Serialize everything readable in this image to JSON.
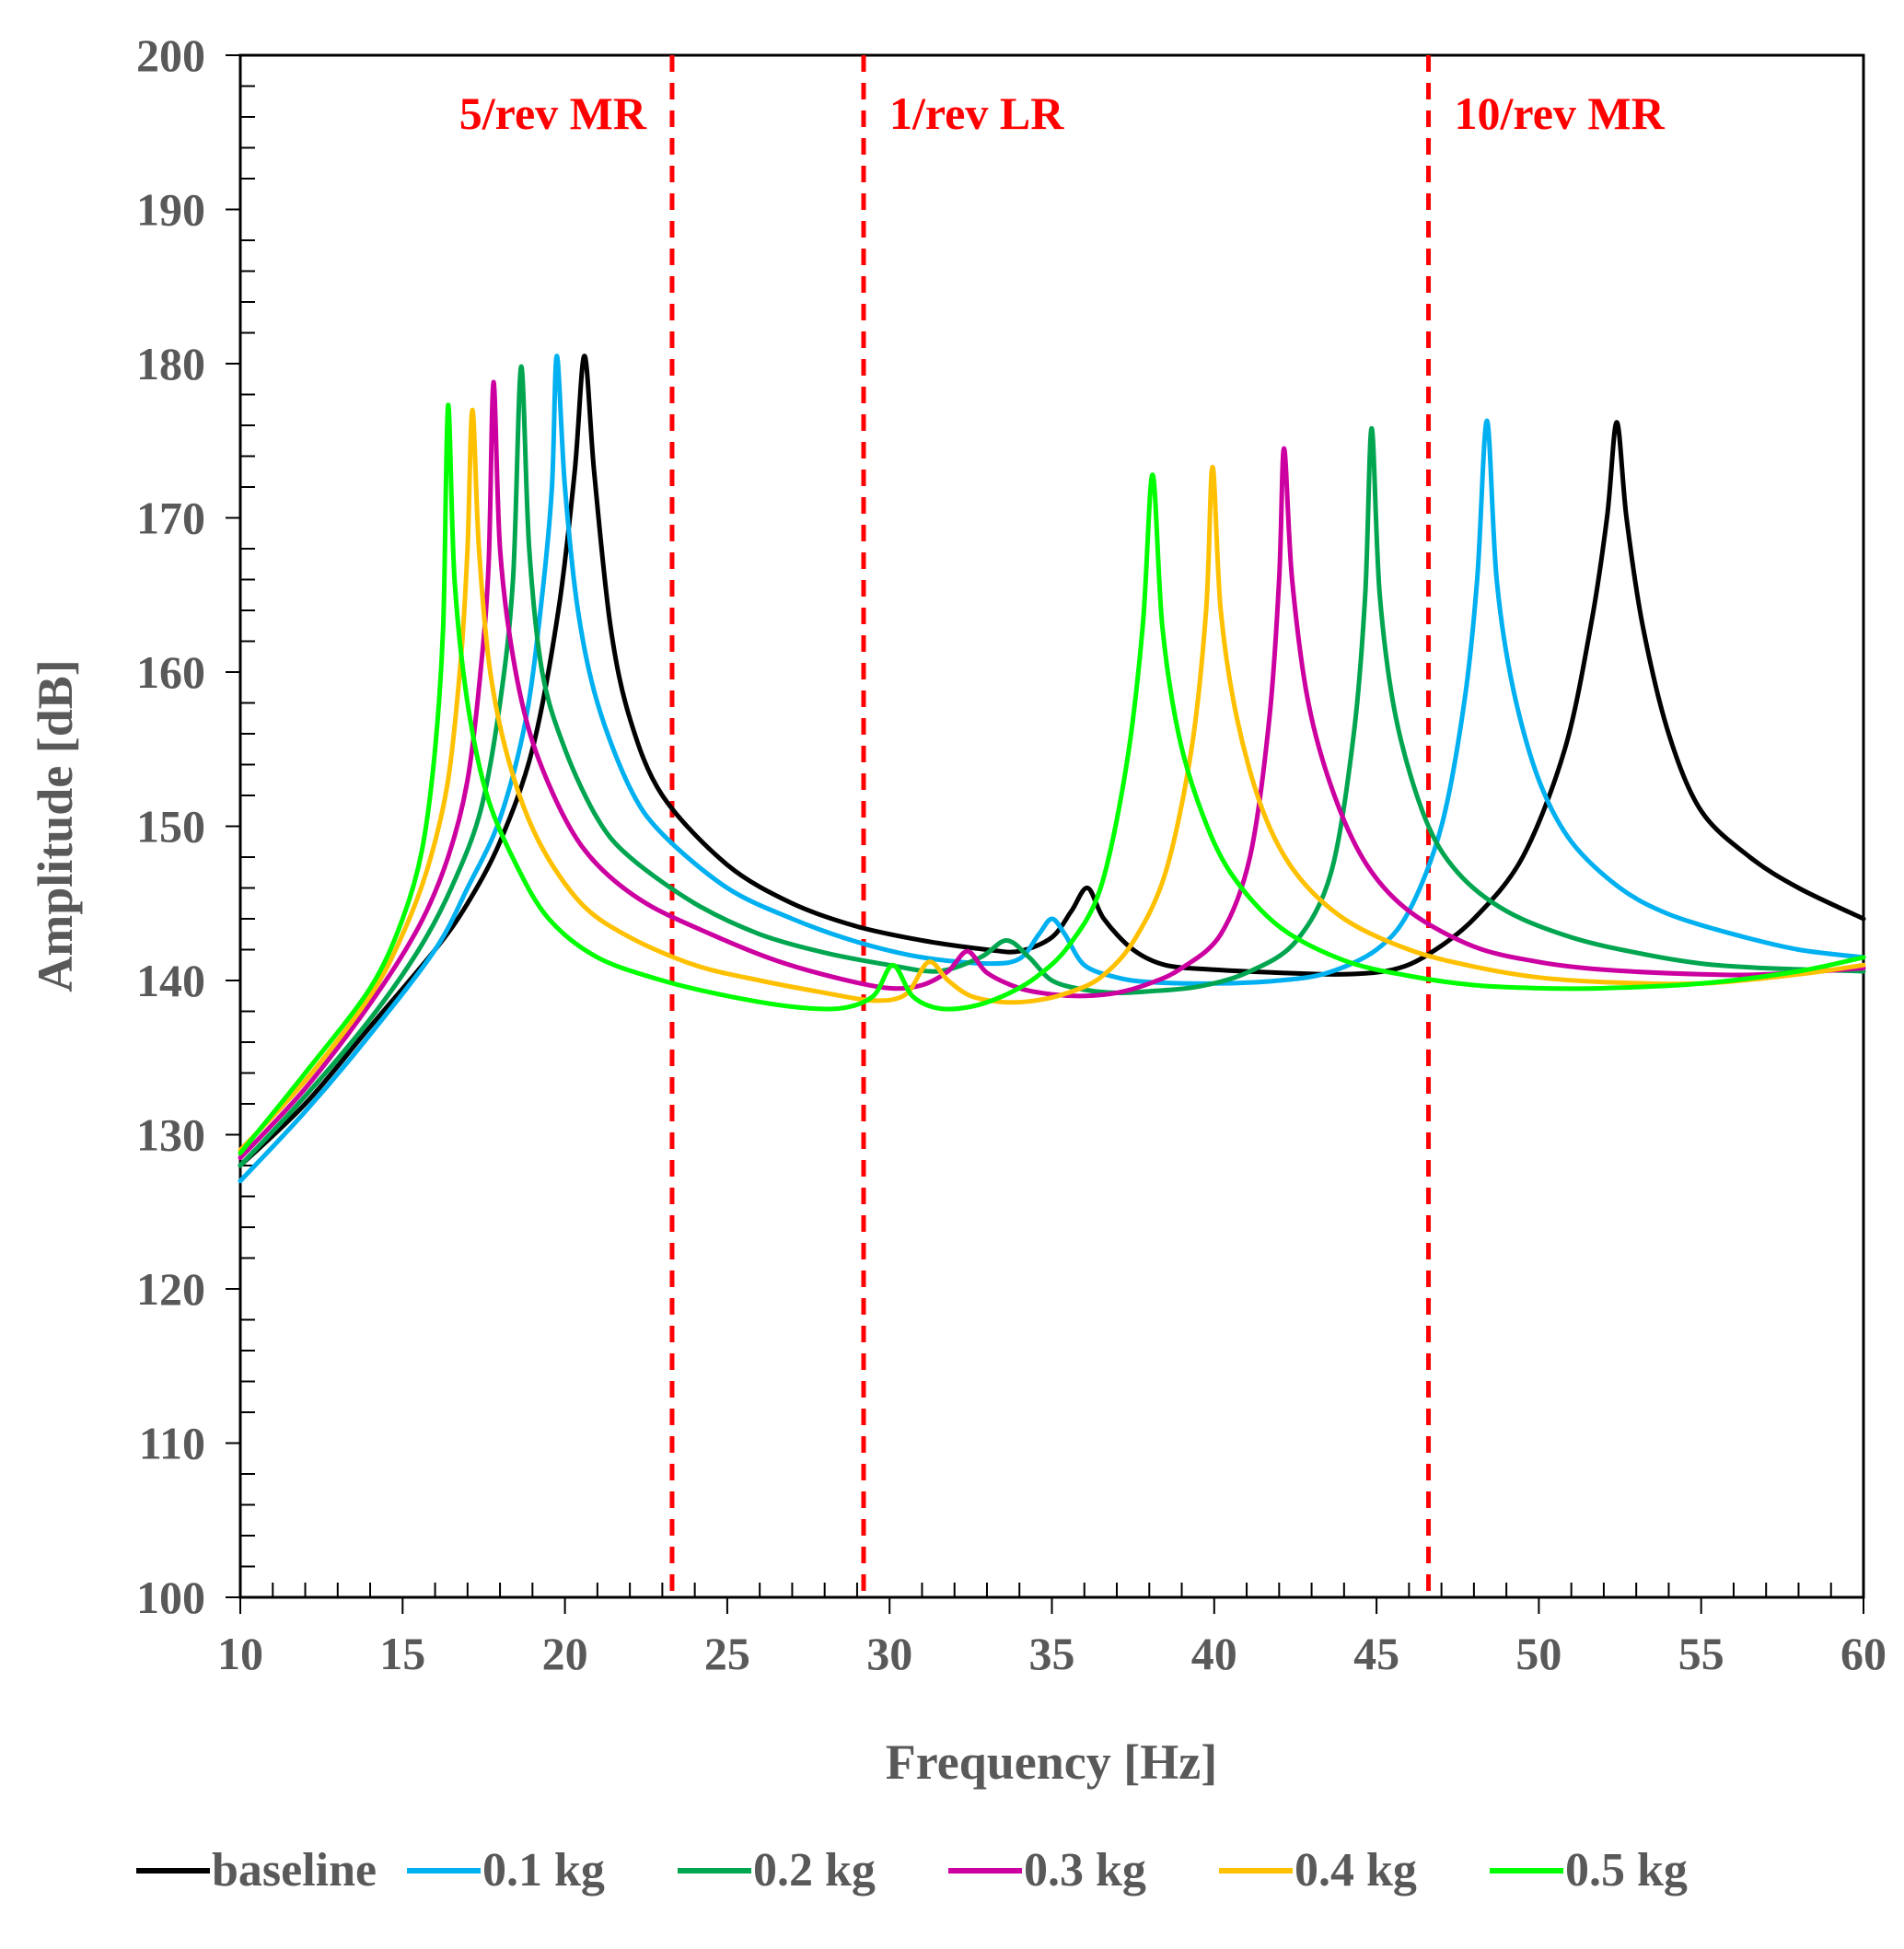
{
  "chart_data": {
    "type": "line",
    "title": "",
    "xlabel": "Frequency [Hz]",
    "ylabel": "Amplitude [dB]",
    "xlim": [
      10,
      60
    ],
    "ylim": [
      100,
      200
    ],
    "xticks": [
      10,
      15,
      20,
      25,
      30,
      35,
      40,
      45,
      50,
      55,
      60
    ],
    "yticks": [
      100,
      110,
      120,
      130,
      140,
      150,
      160,
      170,
      180,
      190,
      200
    ],
    "grid": false,
    "legend_position": "bottom",
    "annotations": [
      {
        "label": "5/rev MR",
        "x": 23.3,
        "color": "#ff0000"
      },
      {
        "label": "1/rev LR",
        "x": 29.2,
        "color": "#ff0000"
      },
      {
        "label": "10/rev MR",
        "x": 46.6,
        "color": "#ff0000"
      }
    ],
    "series": [
      {
        "name": "baseline",
        "color": "#000000",
        "points": [
          [
            10,
            128
          ],
          [
            12,
            132
          ],
          [
            14,
            137
          ],
          [
            16,
            142
          ],
          [
            17,
            145
          ],
          [
            18,
            149
          ],
          [
            19,
            155
          ],
          [
            19.8,
            164
          ],
          [
            20.3,
            173
          ],
          [
            20.6,
            180.5
          ],
          [
            20.9,
            173
          ],
          [
            21.4,
            163
          ],
          [
            22,
            157
          ],
          [
            23,
            152
          ],
          [
            25,
            147.5
          ],
          [
            27,
            145
          ],
          [
            29,
            143.5
          ],
          [
            31,
            142.6
          ],
          [
            33,
            142
          ],
          [
            34,
            141.9
          ],
          [
            35,
            142.8
          ],
          [
            35.6,
            144.5
          ],
          [
            36.1,
            146
          ],
          [
            36.6,
            144
          ],
          [
            37.5,
            142
          ],
          [
            38.5,
            141
          ],
          [
            40,
            140.7
          ],
          [
            42,
            140.5
          ],
          [
            44,
            140.4
          ],
          [
            45.5,
            140.7
          ],
          [
            46.6,
            141.7
          ],
          [
            48,
            144
          ],
          [
            49.5,
            148
          ],
          [
            50.8,
            155
          ],
          [
            51.6,
            163
          ],
          [
            52.1,
            170
          ],
          [
            52.4,
            176.2
          ],
          [
            52.7,
            170
          ],
          [
            53.2,
            163
          ],
          [
            54,
            156
          ],
          [
            55,
            151
          ],
          [
            56.5,
            148
          ],
          [
            58,
            146
          ],
          [
            60,
            144
          ]
        ]
      },
      {
        "name": "0.1 kg",
        "color": "#00b0f0",
        "points": [
          [
            10,
            127
          ],
          [
            12,
            131.5
          ],
          [
            14,
            136.5
          ],
          [
            16,
            142
          ],
          [
            17,
            146
          ],
          [
            18,
            150.5
          ],
          [
            18.8,
            157
          ],
          [
            19.3,
            165
          ],
          [
            19.6,
            172
          ],
          [
            19.75,
            180.5
          ],
          [
            20,
            172
          ],
          [
            20.4,
            164
          ],
          [
            21,
            158
          ],
          [
            22,
            152.5
          ],
          [
            23,
            149.5
          ],
          [
            25,
            146
          ],
          [
            27,
            144
          ],
          [
            29,
            142.5
          ],
          [
            31,
            141.5
          ],
          [
            33,
            141.1
          ],
          [
            34,
            141.4
          ],
          [
            34.6,
            143
          ],
          [
            35,
            144
          ],
          [
            35.4,
            143
          ],
          [
            36,
            141
          ],
          [
            37,
            140.2
          ],
          [
            38,
            139.9
          ],
          [
            40,
            139.8
          ],
          [
            42,
            140
          ],
          [
            43.5,
            140.5
          ],
          [
            45,
            142
          ],
          [
            46,
            144.5
          ],
          [
            47,
            150
          ],
          [
            47.7,
            158
          ],
          [
            48.1,
            166
          ],
          [
            48.4,
            176.3
          ],
          [
            48.7,
            166
          ],
          [
            49.2,
            159
          ],
          [
            50,
            153
          ],
          [
            51,
            149
          ],
          [
            52.5,
            146
          ],
          [
            54,
            144.3
          ],
          [
            56,
            143
          ],
          [
            58,
            142
          ],
          [
            60,
            141.5
          ]
        ]
      },
      {
        "name": "0.2 kg",
        "color": "#00a550",
        "points": [
          [
            10,
            128
          ],
          [
            12,
            132.5
          ],
          [
            14,
            137.5
          ],
          [
            15.5,
            142
          ],
          [
            16.5,
            146
          ],
          [
            17.4,
            151
          ],
          [
            18,
            158
          ],
          [
            18.4,
            166
          ],
          [
            18.65,
            179.8
          ],
          [
            18.9,
            168
          ],
          [
            19.3,
            160
          ],
          [
            20,
            155
          ],
          [
            21,
            150.5
          ],
          [
            22,
            148
          ],
          [
            24,
            145
          ],
          [
            26,
            143
          ],
          [
            28,
            141.8
          ],
          [
            30,
            141
          ],
          [
            31.5,
            140.6
          ],
          [
            32.8,
            141.5
          ],
          [
            33.6,
            142.6
          ],
          [
            34.3,
            141.5
          ],
          [
            35,
            140
          ],
          [
            36,
            139.4
          ],
          [
            37,
            139.2
          ],
          [
            38,
            139.3
          ],
          [
            39.5,
            139.6
          ],
          [
            41,
            140.5
          ],
          [
            42.5,
            142.5
          ],
          [
            43.6,
            147
          ],
          [
            44.3,
            156
          ],
          [
            44.65,
            165
          ],
          [
            44.85,
            175.8
          ],
          [
            45.1,
            165
          ],
          [
            45.6,
            157
          ],
          [
            46.5,
            150.5
          ],
          [
            47.5,
            147
          ],
          [
            49,
            144.5
          ],
          [
            51,
            142.8
          ],
          [
            53,
            141.8
          ],
          [
            55,
            141.1
          ],
          [
            57,
            140.8
          ],
          [
            60,
            140.6
          ]
        ]
      },
      {
        "name": "0.3 kg",
        "color": "#cc00a0",
        "points": [
          [
            10,
            128.5
          ],
          [
            12,
            133
          ],
          [
            14,
            138.5
          ],
          [
            15.5,
            143.5
          ],
          [
            16.4,
            148
          ],
          [
            17,
            153
          ],
          [
            17.4,
            160
          ],
          [
            17.65,
            167
          ],
          [
            17.8,
            178.8
          ],
          [
            18.0,
            168
          ],
          [
            18.4,
            161
          ],
          [
            19,
            155.5
          ],
          [
            20,
            150.5
          ],
          [
            21,
            147.5
          ],
          [
            22.5,
            145
          ],
          [
            24.5,
            143
          ],
          [
            26.5,
            141.3
          ],
          [
            28.5,
            140.1
          ],
          [
            30,
            139.5
          ],
          [
            31,
            139.7
          ],
          [
            31.8,
            140.6
          ],
          [
            32.4,
            141.9
          ],
          [
            33,
            140.5
          ],
          [
            34,
            139.5
          ],
          [
            35,
            139.1
          ],
          [
            36,
            139
          ],
          [
            37,
            139.2
          ],
          [
            38,
            139.8
          ],
          [
            39,
            140.8
          ],
          [
            40.2,
            143
          ],
          [
            41.1,
            148
          ],
          [
            41.7,
            157
          ],
          [
            42.0,
            166
          ],
          [
            42.15,
            174.5
          ],
          [
            42.4,
            166
          ],
          [
            42.9,
            158
          ],
          [
            43.7,
            152
          ],
          [
            44.7,
            147.5
          ],
          [
            46,
            144.5
          ],
          [
            48,
            142.2
          ],
          [
            50,
            141.2
          ],
          [
            52,
            140.7
          ],
          [
            55,
            140.4
          ],
          [
            57,
            140.4
          ],
          [
            60,
            140.8
          ]
        ]
      },
      {
        "name": "0.4 kg",
        "color": "#ffc000",
        "points": [
          [
            10,
            129
          ],
          [
            12,
            133.5
          ],
          [
            14,
            139
          ],
          [
            15,
            143
          ],
          [
            15.8,
            147.5
          ],
          [
            16.4,
            153
          ],
          [
            16.8,
            161
          ],
          [
            17.0,
            168
          ],
          [
            17.15,
            177
          ],
          [
            17.35,
            168
          ],
          [
            17.7,
            160
          ],
          [
            18.3,
            154
          ],
          [
            19.2,
            149
          ],
          [
            20.5,
            145
          ],
          [
            22,
            142.8
          ],
          [
            24,
            141
          ],
          [
            26,
            140
          ],
          [
            28,
            139.2
          ],
          [
            29.5,
            138.7
          ],
          [
            30.5,
            139.1
          ],
          [
            31.2,
            141.2
          ],
          [
            31.8,
            140
          ],
          [
            32.5,
            139
          ],
          [
            33.5,
            138.6
          ],
          [
            34.5,
            138.7
          ],
          [
            35.5,
            139.2
          ],
          [
            36.5,
            140.2
          ],
          [
            37.5,
            142.5
          ],
          [
            38.5,
            147
          ],
          [
            39.3,
            155
          ],
          [
            39.75,
            164
          ],
          [
            39.95,
            173.3
          ],
          [
            40.2,
            164
          ],
          [
            40.7,
            157
          ],
          [
            41.5,
            151
          ],
          [
            42.5,
            147
          ],
          [
            44,
            144
          ],
          [
            46,
            142
          ],
          [
            48,
            140.9
          ],
          [
            50,
            140.2
          ],
          [
            52,
            139.9
          ],
          [
            55,
            139.8
          ],
          [
            58,
            140.4
          ],
          [
            60,
            141
          ]
        ]
      },
      {
        "name": "0.5 kg",
        "color": "#00ff00",
        "points": [
          [
            10,
            128.8
          ],
          [
            12,
            134
          ],
          [
            14,
            139.5
          ],
          [
            15,
            144
          ],
          [
            15.6,
            148.5
          ],
          [
            16,
            155
          ],
          [
            16.25,
            163
          ],
          [
            16.4,
            177.3
          ],
          [
            16.6,
            166
          ],
          [
            17,
            158
          ],
          [
            17.6,
            152
          ],
          [
            18.5,
            147.5
          ],
          [
            19.5,
            144
          ],
          [
            21,
            141.5
          ],
          [
            23,
            140
          ],
          [
            25,
            139
          ],
          [
            27,
            138.3
          ],
          [
            28.5,
            138.2
          ],
          [
            29.5,
            139
          ],
          [
            30.1,
            141
          ],
          [
            30.7,
            139
          ],
          [
            31.5,
            138.2
          ],
          [
            32.5,
            138.3
          ],
          [
            33.5,
            139
          ],
          [
            34.5,
            140.2
          ],
          [
            35.5,
            142.2
          ],
          [
            36.5,
            146
          ],
          [
            37.3,
            154
          ],
          [
            37.8,
            163
          ],
          [
            38.1,
            172.8
          ],
          [
            38.4,
            163
          ],
          [
            38.9,
            156
          ],
          [
            39.6,
            151
          ],
          [
            40.5,
            147
          ],
          [
            42,
            143.5
          ],
          [
            44,
            141.3
          ],
          [
            46,
            140.3
          ],
          [
            48,
            139.7
          ],
          [
            50,
            139.5
          ],
          [
            52,
            139.5
          ],
          [
            55,
            139.8
          ],
          [
            58,
            140.6
          ],
          [
            60,
            141.5
          ]
        ]
      }
    ]
  }
}
